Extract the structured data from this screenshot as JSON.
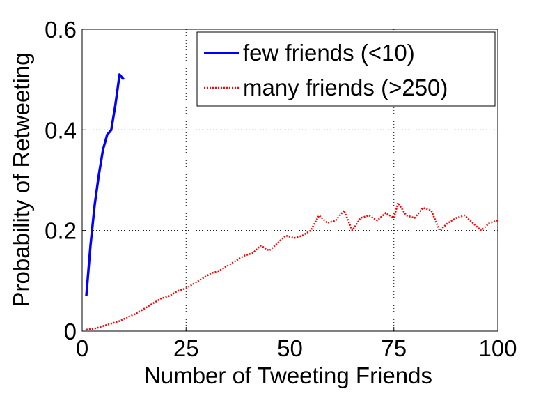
{
  "chart_data": {
    "type": "line",
    "xlabel": "Number of Tweeting Friends",
    "ylabel": "Probability of Retweeting",
    "xlim": [
      0,
      100
    ],
    "xticks": [
      0,
      25,
      50,
      75,
      100
    ],
    "ylim": [
      0,
      0.6
    ],
    "yticks": [
      0,
      0.2,
      0.4,
      0.6
    ],
    "grid": true,
    "legend": "upper right",
    "series": [
      {
        "name": "few friends (<10)",
        "color": "#0000ff",
        "style": "solid",
        "x": [
          1,
          2,
          3,
          4,
          5,
          6,
          7,
          8,
          9,
          10
        ],
        "values": [
          0.07,
          0.17,
          0.25,
          0.31,
          0.36,
          0.39,
          0.4,
          0.45,
          0.51,
          0.5
        ]
      },
      {
        "name": "many friends (>250)",
        "color": "#ff0000",
        "style": "dotted",
        "x": [
          1,
          3,
          5,
          7,
          9,
          11,
          13,
          15,
          17,
          19,
          21,
          23,
          25,
          27,
          29,
          31,
          33,
          35,
          37,
          39,
          41,
          43,
          45,
          47,
          49,
          51,
          53,
          55,
          57,
          59,
          61,
          63,
          65,
          67,
          69,
          71,
          73,
          75,
          76,
          78,
          80,
          82,
          84,
          86,
          88,
          90,
          92,
          94,
          96,
          98,
          100
        ],
        "values": [
          0.003,
          0.005,
          0.01,
          0.015,
          0.02,
          0.028,
          0.035,
          0.045,
          0.055,
          0.065,
          0.07,
          0.08,
          0.085,
          0.095,
          0.105,
          0.115,
          0.12,
          0.13,
          0.14,
          0.15,
          0.155,
          0.17,
          0.16,
          0.175,
          0.19,
          0.185,
          0.19,
          0.2,
          0.23,
          0.215,
          0.22,
          0.24,
          0.2,
          0.225,
          0.23,
          0.22,
          0.235,
          0.225,
          0.255,
          0.23,
          0.225,
          0.245,
          0.24,
          0.2,
          0.215,
          0.225,
          0.23,
          0.215,
          0.2,
          0.215,
          0.22
        ]
      }
    ]
  }
}
